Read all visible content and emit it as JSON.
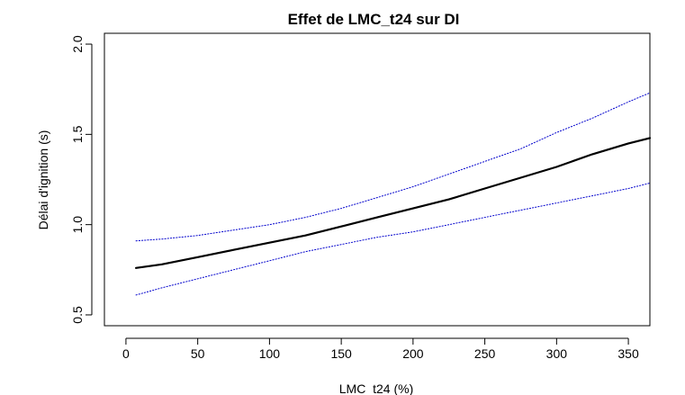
{
  "chart_data": {
    "type": "line",
    "title": "Effet de LMC_t24 sur DI",
    "xlabel": "LMC_t24 (%)",
    "ylabel": "Délai d'ignition (s)",
    "xlim": [
      -15,
      365
    ],
    "ylim": [
      0.44,
      2.06
    ],
    "grid": false,
    "legend": "none",
    "x_ticks": [
      0,
      50,
      100,
      150,
      200,
      250,
      300,
      350
    ],
    "y_ticks": [
      0.5,
      1.0,
      1.5,
      2.0
    ],
    "x_tick_labels": [
      "0",
      "50",
      "100",
      "150",
      "200",
      "250",
      "300",
      "350"
    ],
    "y_tick_labels": [
      "0.5",
      "1.0",
      "1.5",
      "2.0"
    ],
    "x": [
      7,
      25,
      50,
      75,
      100,
      125,
      150,
      175,
      200,
      225,
      250,
      275,
      300,
      325,
      350,
      365
    ],
    "series": [
      {
        "role": "estimate",
        "color": "#000000",
        "style": "solid",
        "values": [
          0.76,
          0.78,
          0.82,
          0.86,
          0.9,
          0.94,
          0.99,
          1.04,
          1.09,
          1.14,
          1.2,
          1.26,
          1.32,
          1.39,
          1.45,
          1.48
        ]
      },
      {
        "role": "upper-ci",
        "color": "#0000cc",
        "style": "dotted",
        "values": [
          0.91,
          0.92,
          0.94,
          0.97,
          1.0,
          1.04,
          1.09,
          1.15,
          1.21,
          1.28,
          1.35,
          1.42,
          1.51,
          1.59,
          1.68,
          1.73
        ]
      },
      {
        "role": "lower-ci",
        "color": "#0000cc",
        "style": "dotted",
        "values": [
          0.61,
          0.65,
          0.7,
          0.75,
          0.8,
          0.85,
          0.89,
          0.93,
          0.96,
          1.0,
          1.04,
          1.08,
          1.12,
          1.16,
          1.2,
          1.23
        ]
      }
    ]
  }
}
